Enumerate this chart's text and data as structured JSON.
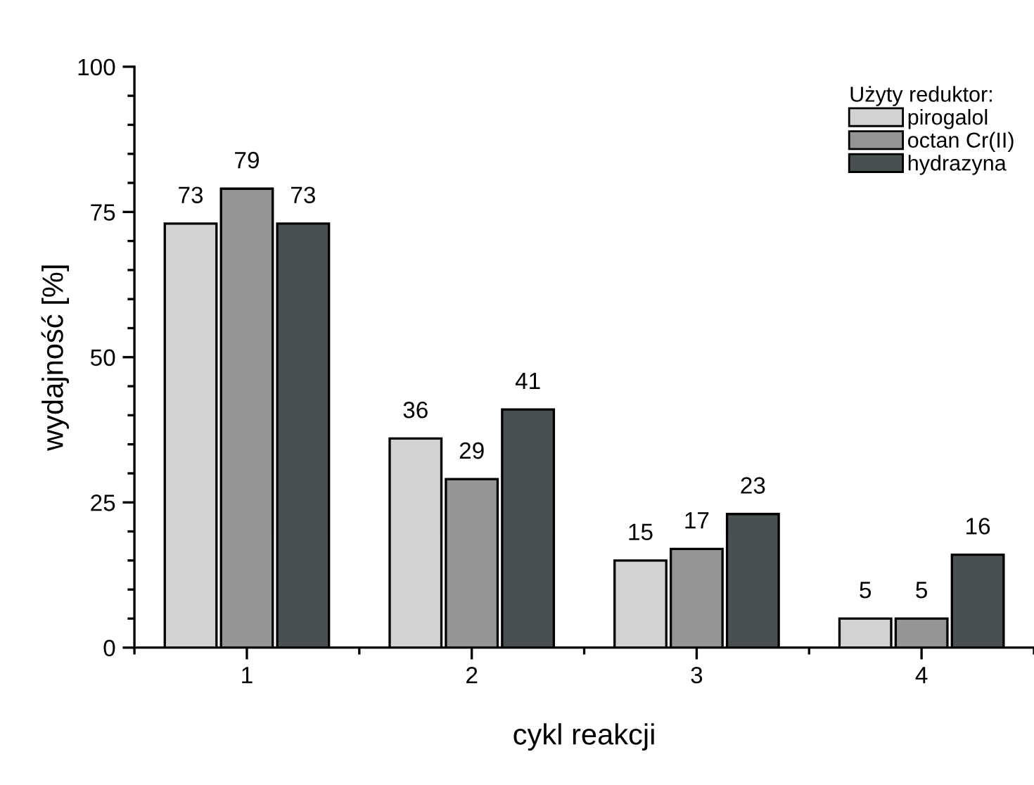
{
  "chart_data": {
    "type": "bar",
    "xlabel": "cykl reakcji",
    "ylabel": "wydajność [%]",
    "legend_title": "Użyty reduktor:",
    "legend": "top right",
    "data_labels": true,
    "categories": [
      "1",
      "2",
      "3",
      "4"
    ],
    "series": [
      {
        "name": "pirogalol",
        "color": "#d2d2d2",
        "values": [
          73,
          36,
          15,
          5
        ]
      },
      {
        "name": "octan Cr(II)",
        "color": "#959595",
        "values": [
          79,
          29,
          17,
          5
        ]
      },
      {
        "name": "hydrazyna",
        "color": "#4a5052",
        "values": [
          73,
          41,
          23,
          16
        ]
      }
    ],
    "ylim": [
      0,
      100
    ],
    "yticks": [
      0,
      {
        "value": 5,
        "label": null
      },
      {
        "value": 10,
        "label": null
      },
      {
        "value": 15,
        "label": null
      },
      {
        "value": 20,
        "label": null
      },
      25,
      {
        "value": 30,
        "label": null
      },
      {
        "value": 35,
        "label": null
      },
      {
        "value": 40,
        "label": null
      },
      {
        "value": 45,
        "label": null
      },
      50,
      {
        "value": 55,
        "label": null
      },
      {
        "value": 60,
        "label": null
      },
      {
        "value": 65,
        "label": null
      },
      {
        "value": 70,
        "label": null
      },
      75,
      {
        "value": 80,
        "label": null
      },
      {
        "value": 85,
        "label": null
      },
      {
        "value": 90,
        "label": null
      },
      {
        "value": 95,
        "label": null
      },
      100
    ],
    "grid": false
  }
}
